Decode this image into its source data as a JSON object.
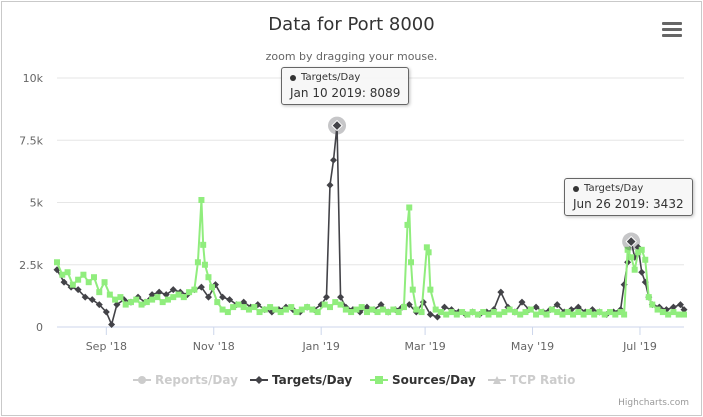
{
  "title": "Data for Port 8000",
  "subtitle": "zoom by dragging your mouse.",
  "credits": "Highcharts.com",
  "menu_icon": "hamburger-menu-icon",
  "colors": {
    "reports": "#c0c0c0",
    "targets": "#434348",
    "sources": "#90ed7d",
    "tcp": "#c0c0c0"
  },
  "legend": [
    {
      "name": "Reports/Day",
      "color": "#c0c0c0",
      "marker": "circle",
      "visible": false
    },
    {
      "name": "Targets/Day",
      "color": "#434348",
      "marker": "diamond",
      "visible": true
    },
    {
      "name": "Sources/Day",
      "color": "#90ed7d",
      "marker": "square",
      "visible": true
    },
    {
      "name": "TCP Ratio",
      "color": "#c0c0c0",
      "marker": "triangle",
      "visible": false
    }
  ],
  "tooltips": [
    {
      "series": "Targets/Day",
      "text": "Jan 10 2019: 8089"
    },
    {
      "series": "Targets/Day",
      "text": "Jun 26 2019: 3432"
    }
  ],
  "chart_data": {
    "type": "line",
    "title": "Data for Port 8000",
    "ylim": [
      0,
      10000
    ],
    "y_ticks": [
      0,
      2500,
      5000,
      7500,
      10000
    ],
    "y_tick_labels": [
      "0",
      "2.5k",
      "5k",
      "7.5k",
      "10k"
    ],
    "x_ticks": [
      "2018-09-01",
      "2018-11-01",
      "2019-01-01",
      "2019-03-01",
      "2019-05-01",
      "2019-07-01"
    ],
    "x_tick_labels": [
      "Sep '18",
      "Nov '18",
      "Jan '19",
      "Mar '19",
      "May '19",
      "Jul '19"
    ],
    "xlim": [
      "2018-08-04",
      "2019-07-26"
    ],
    "grid": true,
    "legend_position": "bottom",
    "series": [
      {
        "name": "Targets/Day",
        "marker": "diamond",
        "points": [
          [
            "2018-08-04",
            2300
          ],
          [
            "2018-08-08",
            1800
          ],
          [
            "2018-08-12",
            1600
          ],
          [
            "2018-08-16",
            1500
          ],
          [
            "2018-08-20",
            1200
          ],
          [
            "2018-08-24",
            1100
          ],
          [
            "2018-08-28",
            900
          ],
          [
            "2018-09-01",
            600
          ],
          [
            "2018-09-04",
            100
          ],
          [
            "2018-09-07",
            900
          ],
          [
            "2018-09-11",
            1100
          ],
          [
            "2018-09-15",
            1000
          ],
          [
            "2018-09-19",
            1200
          ],
          [
            "2018-09-23",
            1000
          ],
          [
            "2018-09-27",
            1300
          ],
          [
            "2018-10-01",
            1400
          ],
          [
            "2018-10-05",
            1300
          ],
          [
            "2018-10-09",
            1500
          ],
          [
            "2018-10-13",
            1400
          ],
          [
            "2018-10-17",
            1300
          ],
          [
            "2018-10-21",
            1500
          ],
          [
            "2018-10-25",
            1600
          ],
          [
            "2018-10-29",
            1200
          ],
          [
            "2018-11-02",
            1700
          ],
          [
            "2018-11-06",
            1200
          ],
          [
            "2018-11-10",
            1100
          ],
          [
            "2018-11-14",
            900
          ],
          [
            "2018-11-18",
            1000
          ],
          [
            "2018-11-22",
            800
          ],
          [
            "2018-11-26",
            900
          ],
          [
            "2018-11-30",
            700
          ],
          [
            "2018-12-04",
            600
          ],
          [
            "2018-12-08",
            700
          ],
          [
            "2018-12-12",
            800
          ],
          [
            "2018-12-16",
            700
          ],
          [
            "2018-12-20",
            600
          ],
          [
            "2018-12-24",
            800
          ],
          [
            "2018-12-28",
            700
          ],
          [
            "2019-01-01",
            900
          ],
          [
            "2019-01-04",
            1200
          ],
          [
            "2019-01-06",
            5700
          ],
          [
            "2019-01-08",
            6700
          ],
          [
            "2019-01-10",
            8089
          ],
          [
            "2019-01-12",
            1200
          ],
          [
            "2019-01-15",
            800
          ],
          [
            "2019-01-19",
            700
          ],
          [
            "2019-01-23",
            600
          ],
          [
            "2019-01-27",
            800
          ],
          [
            "2019-01-31",
            700
          ],
          [
            "2019-02-04",
            900
          ],
          [
            "2019-02-08",
            600
          ],
          [
            "2019-02-12",
            700
          ],
          [
            "2019-02-16",
            800
          ],
          [
            "2019-02-20",
            900
          ],
          [
            "2019-02-24",
            600
          ],
          [
            "2019-02-28",
            1000
          ],
          [
            "2019-03-04",
            500
          ],
          [
            "2019-03-08",
            400
          ],
          [
            "2019-03-12",
            800
          ],
          [
            "2019-03-16",
            700
          ],
          [
            "2019-03-20",
            600
          ],
          [
            "2019-03-24",
            500
          ],
          [
            "2019-03-28",
            600
          ],
          [
            "2019-04-01",
            500
          ],
          [
            "2019-04-05",
            600
          ],
          [
            "2019-04-09",
            700
          ],
          [
            "2019-04-13",
            1400
          ],
          [
            "2019-04-17",
            800
          ],
          [
            "2019-04-21",
            600
          ],
          [
            "2019-04-25",
            1000
          ],
          [
            "2019-04-29",
            700
          ],
          [
            "2019-05-03",
            800
          ],
          [
            "2019-05-07",
            600
          ],
          [
            "2019-05-11",
            700
          ],
          [
            "2019-05-15",
            900
          ],
          [
            "2019-05-19",
            600
          ],
          [
            "2019-05-23",
            700
          ],
          [
            "2019-05-27",
            800
          ],
          [
            "2019-05-31",
            600
          ],
          [
            "2019-06-04",
            700
          ],
          [
            "2019-06-08",
            600
          ],
          [
            "2019-06-12",
            500
          ],
          [
            "2019-06-16",
            600
          ],
          [
            "2019-06-20",
            700
          ],
          [
            "2019-06-22",
            1700
          ],
          [
            "2019-06-24",
            2600
          ],
          [
            "2019-06-26",
            3432
          ],
          [
            "2019-06-28",
            2800
          ],
          [
            "2019-06-30",
            3200
          ],
          [
            "2019-07-02",
            2200
          ],
          [
            "2019-07-04",
            1800
          ],
          [
            "2019-07-06",
            1200
          ],
          [
            "2019-07-08",
            900
          ],
          [
            "2019-07-12",
            800
          ],
          [
            "2019-07-16",
            700
          ],
          [
            "2019-07-20",
            800
          ],
          [
            "2019-07-24",
            900
          ],
          [
            "2019-07-26",
            700
          ]
        ]
      },
      {
        "name": "Sources/Day",
        "marker": "square",
        "points": [
          [
            "2018-08-04",
            2600
          ],
          [
            "2018-08-07",
            2100
          ],
          [
            "2018-08-10",
            2200
          ],
          [
            "2018-08-13",
            1700
          ],
          [
            "2018-08-16",
            1900
          ],
          [
            "2018-08-19",
            2100
          ],
          [
            "2018-08-22",
            1800
          ],
          [
            "2018-08-25",
            2000
          ],
          [
            "2018-08-28",
            1400
          ],
          [
            "2018-08-31",
            1800
          ],
          [
            "2018-09-03",
            1300
          ],
          [
            "2018-09-06",
            1100
          ],
          [
            "2018-09-09",
            1200
          ],
          [
            "2018-09-12",
            900
          ],
          [
            "2018-09-15",
            1000
          ],
          [
            "2018-09-18",
            1100
          ],
          [
            "2018-09-21",
            900
          ],
          [
            "2018-09-24",
            1000
          ],
          [
            "2018-09-27",
            1100
          ],
          [
            "2018-09-30",
            1200
          ],
          [
            "2018-10-03",
            1000
          ],
          [
            "2018-10-06",
            1100
          ],
          [
            "2018-10-09",
            1200
          ],
          [
            "2018-10-12",
            1300
          ],
          [
            "2018-10-15",
            1200
          ],
          [
            "2018-10-18",
            1400
          ],
          [
            "2018-10-21",
            1500
          ],
          [
            "2018-10-23",
            2600
          ],
          [
            "2018-10-25",
            5100
          ],
          [
            "2018-10-26",
            3300
          ],
          [
            "2018-10-27",
            2500
          ],
          [
            "2018-10-29",
            2000
          ],
          [
            "2018-10-31",
            1600
          ],
          [
            "2018-11-03",
            1000
          ],
          [
            "2018-11-06",
            700
          ],
          [
            "2018-11-09",
            600
          ],
          [
            "2018-11-12",
            800
          ],
          [
            "2018-11-15",
            900
          ],
          [
            "2018-11-18",
            800
          ],
          [
            "2018-11-21",
            700
          ],
          [
            "2018-11-24",
            800
          ],
          [
            "2018-11-27",
            600
          ],
          [
            "2018-11-30",
            700
          ],
          [
            "2018-12-03",
            800
          ],
          [
            "2018-12-06",
            700
          ],
          [
            "2018-12-09",
            600
          ],
          [
            "2018-12-12",
            700
          ],
          [
            "2018-12-15",
            800
          ],
          [
            "2018-12-18",
            600
          ],
          [
            "2018-12-21",
            700
          ],
          [
            "2018-12-24",
            800
          ],
          [
            "2018-12-27",
            700
          ],
          [
            "2018-12-30",
            600
          ],
          [
            "2019-01-03",
            900
          ],
          [
            "2019-01-06",
            800
          ],
          [
            "2019-01-09",
            1000
          ],
          [
            "2019-01-12",
            900
          ],
          [
            "2019-01-15",
            700
          ],
          [
            "2019-01-18",
            600
          ],
          [
            "2019-01-21",
            700
          ],
          [
            "2019-01-24",
            800
          ],
          [
            "2019-01-27",
            600
          ],
          [
            "2019-01-30",
            700
          ],
          [
            "2019-02-02",
            600
          ],
          [
            "2019-02-05",
            700
          ],
          [
            "2019-02-08",
            600
          ],
          [
            "2019-02-11",
            700
          ],
          [
            "2019-02-14",
            600
          ],
          [
            "2019-02-17",
            800
          ],
          [
            "2019-02-19",
            4100
          ],
          [
            "2019-02-20",
            4800
          ],
          [
            "2019-02-21",
            2600
          ],
          [
            "2019-02-22",
            1500
          ],
          [
            "2019-02-24",
            700
          ],
          [
            "2019-02-27",
            600
          ],
          [
            "2019-03-02",
            3200
          ],
          [
            "2019-03-03",
            3000
          ],
          [
            "2019-03-04",
            1500
          ],
          [
            "2019-03-07",
            700
          ],
          [
            "2019-03-10",
            600
          ],
          [
            "2019-03-13",
            500
          ],
          [
            "2019-03-16",
            600
          ],
          [
            "2019-03-19",
            500
          ],
          [
            "2019-03-22",
            600
          ],
          [
            "2019-03-25",
            500
          ],
          [
            "2019-03-28",
            600
          ],
          [
            "2019-03-31",
            500
          ],
          [
            "2019-04-03",
            600
          ],
          [
            "2019-04-06",
            500
          ],
          [
            "2019-04-09",
            600
          ],
          [
            "2019-04-12",
            500
          ],
          [
            "2019-04-15",
            600
          ],
          [
            "2019-04-18",
            700
          ],
          [
            "2019-04-21",
            600
          ],
          [
            "2019-04-24",
            500
          ],
          [
            "2019-04-27",
            600
          ],
          [
            "2019-04-30",
            700
          ],
          [
            "2019-05-03",
            500
          ],
          [
            "2019-05-06",
            600
          ],
          [
            "2019-05-09",
            500
          ],
          [
            "2019-05-12",
            700
          ],
          [
            "2019-05-15",
            600
          ],
          [
            "2019-05-18",
            500
          ],
          [
            "2019-05-21",
            600
          ],
          [
            "2019-05-24",
            500
          ],
          [
            "2019-05-27",
            600
          ],
          [
            "2019-05-30",
            500
          ],
          [
            "2019-06-02",
            600
          ],
          [
            "2019-06-05",
            500
          ],
          [
            "2019-06-08",
            600
          ],
          [
            "2019-06-11",
            500
          ],
          [
            "2019-06-14",
            600
          ],
          [
            "2019-06-17",
            500
          ],
          [
            "2019-06-20",
            600
          ],
          [
            "2019-06-22",
            500
          ],
          [
            "2019-06-24",
            3100
          ],
          [
            "2019-06-26",
            2800
          ],
          [
            "2019-06-28",
            2300
          ],
          [
            "2019-06-30",
            3000
          ],
          [
            "2019-07-02",
            3100
          ],
          [
            "2019-07-04",
            2700
          ],
          [
            "2019-07-06",
            1200
          ],
          [
            "2019-07-08",
            900
          ],
          [
            "2019-07-11",
            700
          ],
          [
            "2019-07-14",
            600
          ],
          [
            "2019-07-17",
            500
          ],
          [
            "2019-07-20",
            600
          ],
          [
            "2019-07-23",
            500
          ],
          [
            "2019-07-26",
            500
          ]
        ]
      }
    ]
  }
}
